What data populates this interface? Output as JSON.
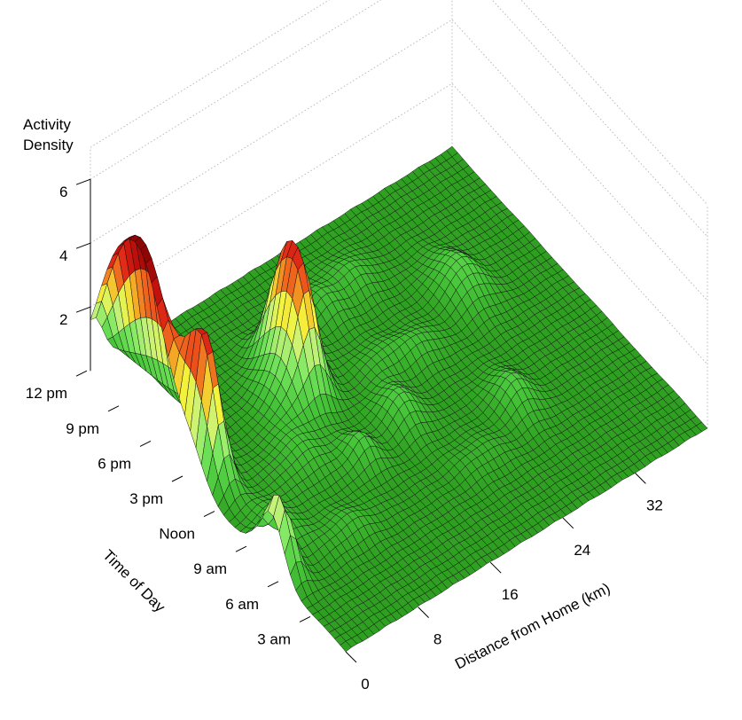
{
  "chart_data": {
    "type": "surface3d",
    "zlabel_lines": [
      "Activity",
      "Density"
    ],
    "xlabel": "Distance from Home (km)",
    "ylabel": "Time of Day",
    "x_range": [
      0,
      40
    ],
    "y_range": [
      0,
      24
    ],
    "z_range": [
      0,
      7
    ],
    "x_ticks": [
      {
        "value": 0,
        "label": "0"
      },
      {
        "value": 8,
        "label": "8"
      },
      {
        "value": 16,
        "label": "16"
      },
      {
        "value": 24,
        "label": "24"
      },
      {
        "value": 32,
        "label": "32"
      }
    ],
    "y_ticks": [
      {
        "value": 3,
        "label": "3 am"
      },
      {
        "value": 6,
        "label": "6 am"
      },
      {
        "value": 9,
        "label": "9 am"
      },
      {
        "value": 12,
        "label": "Noon"
      },
      {
        "value": 15,
        "label": "3 pm"
      },
      {
        "value": 18,
        "label": "6 pm"
      },
      {
        "value": 21,
        "label": "9 pm"
      },
      {
        "value": 24,
        "label": "12 pm"
      }
    ],
    "z_ticks": [
      {
        "value": 2,
        "label": "2"
      },
      {
        "value": 4,
        "label": "4"
      },
      {
        "value": 6,
        "label": "6"
      }
    ],
    "peaks": [
      {
        "x": 0.3,
        "y": 19.5,
        "height": 5.6,
        "sx": 1.3,
        "sy": 2.4
      },
      {
        "x": 1.6,
        "y": 14.5,
        "height": 3.8,
        "sx": 0.9,
        "sy": 1.3
      },
      {
        "x": 0.3,
        "y": 22.5,
        "height": 1.2,
        "sx": 1.0,
        "sy": 1.4
      },
      {
        "x": 2.2,
        "y": 16.5,
        "height": 0.8,
        "sx": 1.2,
        "sy": 1.6
      },
      {
        "x": 0.8,
        "y": 6.5,
        "height": 1.7,
        "sx": 0.8,
        "sy": 1.0
      },
      {
        "x": 0.2,
        "y": 7.5,
        "height": 1.0,
        "sx": 0.7,
        "sy": 1.0
      },
      {
        "x": 3.0,
        "y": 9.0,
        "height": 0.5,
        "sx": 1.5,
        "sy": 1.5
      },
      {
        "x": 14.0,
        "y": 17.5,
        "height": 3.3,
        "sx": 1.4,
        "sy": 1.2
      },
      {
        "x": 13.5,
        "y": 15.5,
        "height": 3.0,
        "sx": 1.2,
        "sy": 1.1
      },
      {
        "x": 11.0,
        "y": 15.5,
        "height": 0.8,
        "sx": 1.5,
        "sy": 1.5
      },
      {
        "x": 9.0,
        "y": 12.0,
        "height": 0.5,
        "sx": 2.0,
        "sy": 1.5
      },
      {
        "x": 13.5,
        "y": 10.0,
        "height": 0.7,
        "sx": 1.2,
        "sy": 1.0
      },
      {
        "x": 8.0,
        "y": 6.5,
        "height": 0.4,
        "sx": 2.0,
        "sy": 1.0
      },
      {
        "x": 20.5,
        "y": 19.5,
        "height": 0.5,
        "sx": 1.5,
        "sy": 1.2
      },
      {
        "x": 24.5,
        "y": 20.0,
        "height": 0.5,
        "sx": 1.5,
        "sy": 1.2
      },
      {
        "x": 21.0,
        "y": 14.5,
        "height": 0.4,
        "sx": 1.5,
        "sy": 1.0
      },
      {
        "x": 19.0,
        "y": 11.0,
        "height": 0.8,
        "sx": 1.3,
        "sy": 1.3
      },
      {
        "x": 24.5,
        "y": 14.0,
        "height": 0.5,
        "sx": 1.5,
        "sy": 1.0
      },
      {
        "x": 31.5,
        "y": 16.0,
        "height": 0.9,
        "sx": 1.6,
        "sy": 1.6
      },
      {
        "x": 28.0,
        "y": 8.0,
        "height": 0.8,
        "sx": 1.3,
        "sy": 1.3
      },
      {
        "x": 22.0,
        "y": 6.0,
        "height": 0.3,
        "sx": 2.0,
        "sy": 1.0
      }
    ],
    "colormap": [
      {
        "z": 0.0,
        "color": "#2f9f21"
      },
      {
        "z": 0.6,
        "color": "#47c63a"
      },
      {
        "z": 1.4,
        "color": "#7be861"
      },
      {
        "z": 2.0,
        "color": "#c8f27a"
      },
      {
        "z": 2.6,
        "color": "#f4f43c"
      },
      {
        "z": 3.2,
        "color": "#f4a023"
      },
      {
        "z": 3.9,
        "color": "#e8321a"
      },
      {
        "z": 4.6,
        "color": "#c6120d"
      },
      {
        "z": 5.4,
        "color": "#8e0505"
      }
    ]
  }
}
